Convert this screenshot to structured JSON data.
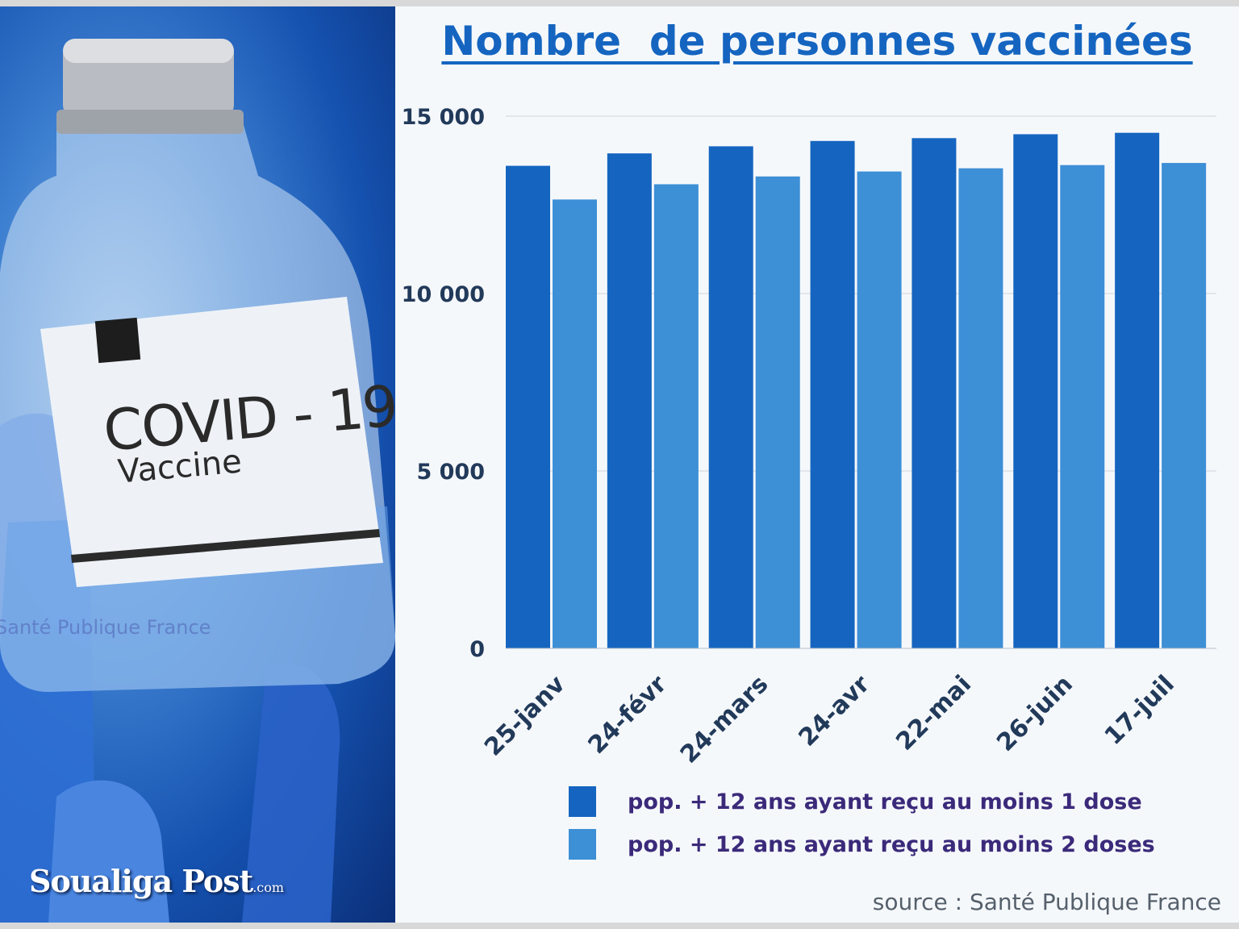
{
  "title": "Nombre  de personnes vaccinées",
  "photo": {
    "label_line1": "COVID - 19",
    "label_line2": "Vaccine",
    "watermark": "Santé Publique France",
    "brand_main": "Soualiga Post",
    "brand_suffix": ".com"
  },
  "source": "source : Santé Publique France",
  "legend": [
    {
      "label": "pop. + 12 ans ayant reçu au moins 1 dose",
      "color": "#1565c0"
    },
    {
      "label": "pop. + 12 ans ayant reçu au moins 2 doses",
      "color": "#3d8fd6"
    }
  ],
  "chart_data": {
    "type": "bar",
    "categories": [
      "25-janv",
      "24-févr",
      "24-mars",
      "24-avr",
      "22-mai",
      "26-juin",
      "17-juil"
    ],
    "series": [
      {
        "name": "pop. + 12 ans ayant reçu au moins 1 dose",
        "color": "#1565c0",
        "values": [
          13600,
          13950,
          14150,
          14300,
          14380,
          14490,
          14530
        ]
      },
      {
        "name": "pop. + 12 ans ayant reçu au moins 2 doses",
        "color": "#3d8fd6",
        "values": [
          12650,
          13080,
          13300,
          13440,
          13530,
          13620,
          13680
        ]
      }
    ],
    "yticks": [
      0,
      5000,
      10000,
      15000
    ],
    "ytick_labels": [
      "0",
      "5 000",
      "10 000",
      "15 000"
    ],
    "ylim": [
      0,
      15000
    ],
    "grid": true,
    "legend_position": "bottom"
  }
}
